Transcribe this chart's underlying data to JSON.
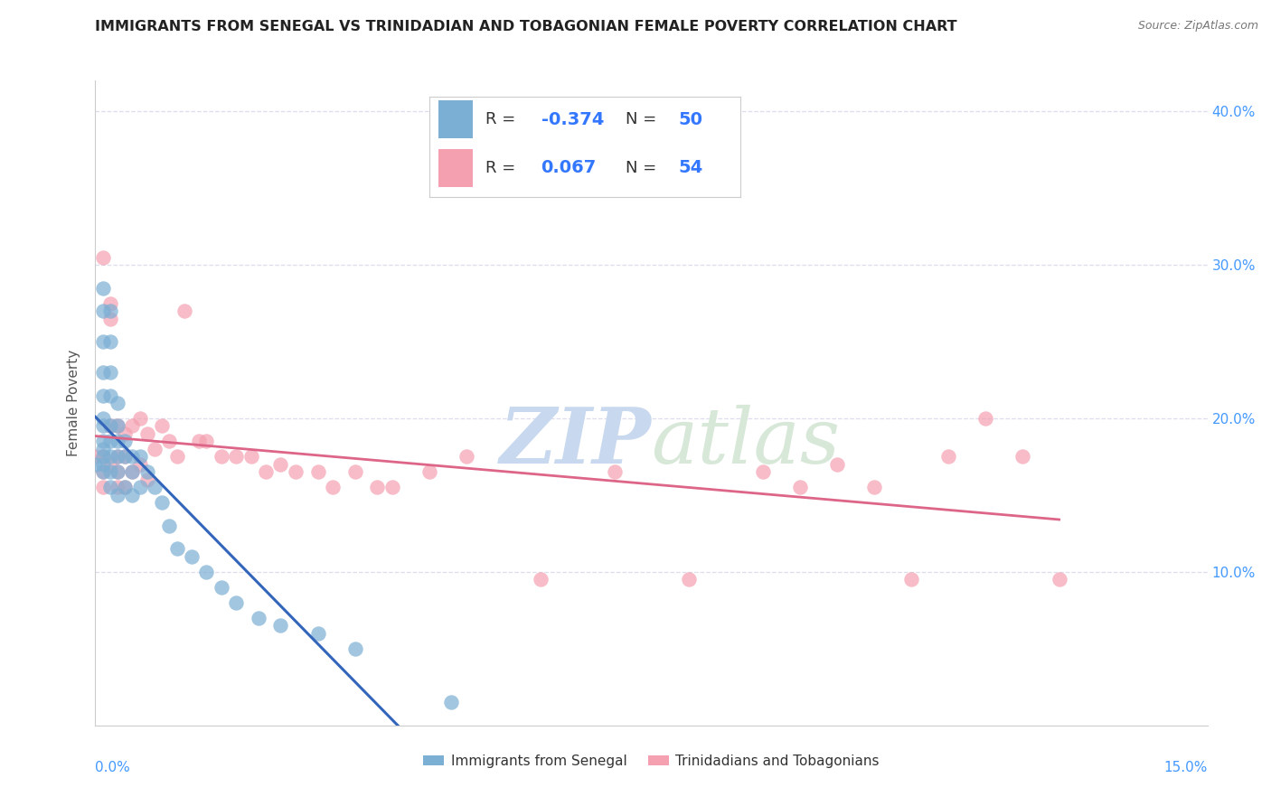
{
  "title": "IMMIGRANTS FROM SENEGAL VS TRINIDADIAN AND TOBAGONIAN FEMALE POVERTY CORRELATION CHART",
  "source": "Source: ZipAtlas.com",
  "ylabel": "Female Poverty",
  "xlim": [
    0.0,
    0.15
  ],
  "ylim": [
    0.0,
    0.42
  ],
  "color_blue": "#7BAFD4",
  "color_pink": "#F4A0B0",
  "trendline1_color": "#3366BB",
  "trendline2_color": "#DD6688",
  "trendline_dashed_color": "#AACCEE",
  "senegal_x": [
    0.0,
    0.001,
    0.001,
    0.001,
    0.001,
    0.001,
    0.001,
    0.001,
    0.001,
    0.001,
    0.001,
    0.001,
    0.001,
    0.002,
    0.002,
    0.002,
    0.002,
    0.002,
    0.002,
    0.002,
    0.002,
    0.002,
    0.003,
    0.003,
    0.003,
    0.003,
    0.003,
    0.003,
    0.004,
    0.004,
    0.004,
    0.005,
    0.005,
    0.005,
    0.006,
    0.006,
    0.007,
    0.008,
    0.009,
    0.01,
    0.011,
    0.013,
    0.015,
    0.017,
    0.019,
    0.022,
    0.025,
    0.03,
    0.035,
    0.048
  ],
  "senegal_y": [
    0.17,
    0.285,
    0.27,
    0.25,
    0.23,
    0.215,
    0.2,
    0.195,
    0.185,
    0.18,
    0.175,
    0.17,
    0.165,
    0.27,
    0.25,
    0.23,
    0.215,
    0.195,
    0.185,
    0.175,
    0.165,
    0.155,
    0.21,
    0.195,
    0.185,
    0.175,
    0.165,
    0.15,
    0.185,
    0.175,
    0.155,
    0.175,
    0.165,
    0.15,
    0.175,
    0.155,
    0.165,
    0.155,
    0.145,
    0.13,
    0.115,
    0.11,
    0.1,
    0.09,
    0.08,
    0.07,
    0.065,
    0.06,
    0.05,
    0.015
  ],
  "trini_x": [
    0.0,
    0.001,
    0.001,
    0.001,
    0.001,
    0.002,
    0.002,
    0.002,
    0.002,
    0.003,
    0.003,
    0.003,
    0.003,
    0.004,
    0.004,
    0.004,
    0.005,
    0.005,
    0.006,
    0.006,
    0.007,
    0.007,
    0.008,
    0.009,
    0.01,
    0.011,
    0.012,
    0.014,
    0.015,
    0.017,
    0.019,
    0.021,
    0.023,
    0.025,
    0.027,
    0.03,
    0.032,
    0.035,
    0.038,
    0.04,
    0.045,
    0.05,
    0.06,
    0.07,
    0.08,
    0.09,
    0.095,
    0.1,
    0.105,
    0.11,
    0.115,
    0.12,
    0.125,
    0.13
  ],
  "trini_y": [
    0.175,
    0.305,
    0.175,
    0.165,
    0.155,
    0.275,
    0.265,
    0.195,
    0.17,
    0.195,
    0.175,
    0.165,
    0.155,
    0.19,
    0.175,
    0.155,
    0.195,
    0.165,
    0.2,
    0.17,
    0.19,
    0.16,
    0.18,
    0.195,
    0.185,
    0.175,
    0.27,
    0.185,
    0.185,
    0.175,
    0.175,
    0.175,
    0.165,
    0.17,
    0.165,
    0.165,
    0.155,
    0.165,
    0.155,
    0.155,
    0.165,
    0.175,
    0.095,
    0.165,
    0.095,
    0.165,
    0.155,
    0.17,
    0.155,
    0.095,
    0.175,
    0.2,
    0.175,
    0.095
  ],
  "watermark_zip": "ZIP",
  "watermark_atlas": "atlas",
  "background_color": "#FFFFFF",
  "grid_color": "#DDDDEE"
}
